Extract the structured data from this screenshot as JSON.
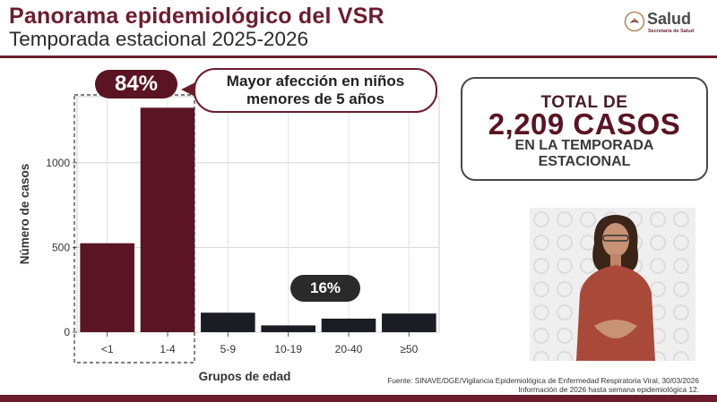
{
  "header": {
    "title": "Panorama epidemiológico del VSR",
    "subtitle": "Temporada estacional 2025-2026",
    "logo_text": "Salud",
    "logo_subtext": "Secretaría de Salud"
  },
  "annotations": {
    "pill_84": "84%",
    "callout_line1": "Mayor afección en niños",
    "callout_line2": "menores de 5 años",
    "pill_16": "16%"
  },
  "summary": {
    "line1": "TOTAL DE",
    "line2": "2,209 CASOS",
    "line3": "EN LA TEMPORADA",
    "line4": "ESTACIONAL"
  },
  "source": {
    "line1": "Fuente: SINAVE/DGE/Vigilancia Epidemiológica de Enfermedad Respiratoria Viral, 30/03/2026",
    "line2": "Información de 2026 hasta semana epidemiológica 12."
  },
  "colors": {
    "highlight": "#5a1423",
    "other": "#1c1c24",
    "brand": "#6b1d2e"
  },
  "chart_data": {
    "type": "bar",
    "categories": [
      "<1",
      "1-4",
      "5-9",
      "10-19",
      "20-40",
      "≥50"
    ],
    "values": [
      525,
      1325,
      115,
      40,
      80,
      110
    ],
    "highlighted_categories": [
      "<1",
      "1-4"
    ],
    "xlabel": "Grupos de edad",
    "ylabel": "Número de casos",
    "yticks": [
      0,
      500,
      1000
    ],
    "ylim": [
      0,
      1390
    ],
    "grid": true
  }
}
